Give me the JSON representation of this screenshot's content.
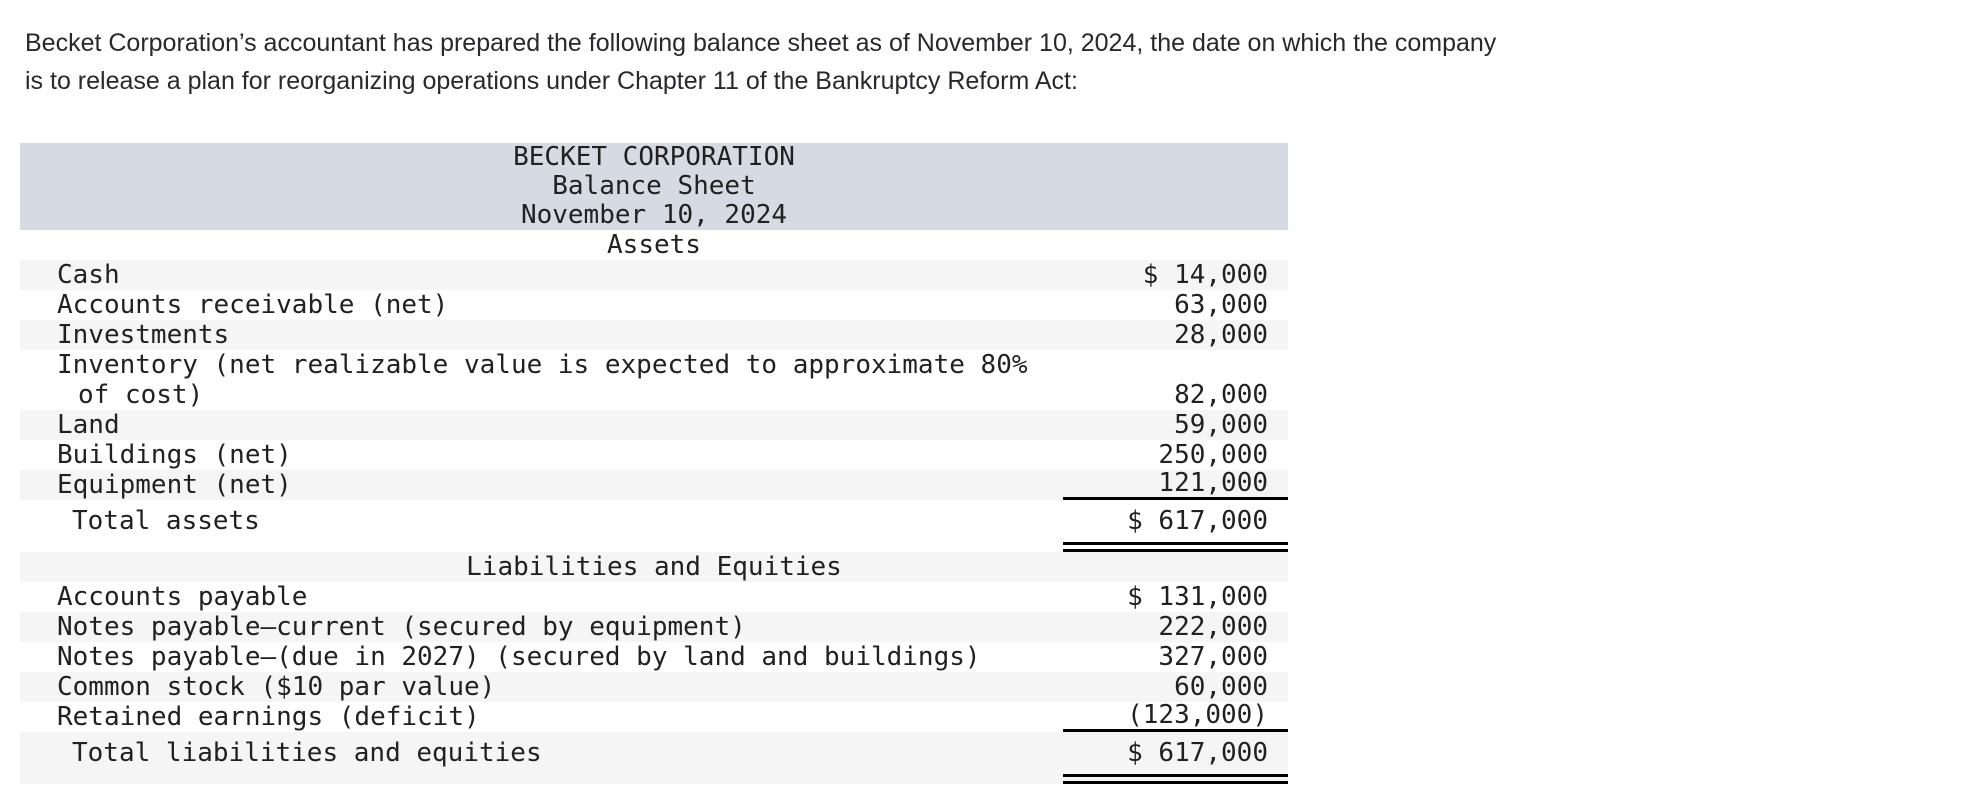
{
  "intro": {
    "lines": [
      "Becket Corporation’s accountant has prepared the following balance sheet as of November 10, 2024, the date on which the company",
      "is to release a plan for reorganizing operations under Chapter 11 of the Bankruptcy Reform Act:"
    ]
  },
  "colors": {
    "header_bg": "#d6dae2",
    "stripe_bg": "#f5f5f6",
    "text": "#212121",
    "rule": "#000000"
  },
  "sheet": {
    "header": [
      "BECKET CORPORATION",
      "Balance Sheet",
      "November 10, 2024"
    ],
    "rows": [
      {
        "id": "assets-section",
        "type": "section",
        "bg": "white",
        "label": "Assets"
      },
      {
        "id": "cash",
        "type": "item",
        "bg": "stripe",
        "label": "Cash",
        "amount": "$ 14,000"
      },
      {
        "id": "accounts-receivable",
        "type": "item",
        "bg": "white",
        "label": "Accounts receivable (net)",
        "amount": "63,000"
      },
      {
        "id": "investments",
        "type": "item",
        "bg": "stripe",
        "label": "Investments",
        "amount": "28,000"
      },
      {
        "id": "inventory",
        "type": "item2",
        "bg": "white",
        "label_lines": [
          "Inventory (net realizable value is expected to approximate 80%",
          "of cost)"
        ],
        "amount": "82,000"
      },
      {
        "id": "land",
        "type": "item",
        "bg": "stripe",
        "label": "Land",
        "amount": "59,000"
      },
      {
        "id": "buildings",
        "type": "item",
        "bg": "white",
        "label": "Buildings (net)",
        "amount": "250,000"
      },
      {
        "id": "equipment",
        "type": "item",
        "bg": "stripe",
        "rule": "single",
        "label": "Equipment (net)",
        "amount": "121,000"
      },
      {
        "id": "total-assets",
        "type": "total",
        "bg": "white",
        "rule": "double",
        "label": "Total assets",
        "amount": "$ 617,000"
      },
      {
        "id": "liabilities-section",
        "type": "section",
        "bg": "stripe",
        "label": "Liabilities and Equities"
      },
      {
        "id": "accounts-payable",
        "type": "item",
        "bg": "white",
        "label": "Accounts payable",
        "amount": "$ 131,000"
      },
      {
        "id": "notes-payable-current",
        "type": "item",
        "bg": "stripe",
        "label": "Notes payable—current (secured by equipment)",
        "amount": "222,000"
      },
      {
        "id": "notes-payable-2027",
        "type": "item",
        "bg": "white",
        "label": "Notes payable—(due in 2027) (secured by land and buildings)",
        "amount": "327,000"
      },
      {
        "id": "common-stock",
        "type": "item",
        "bg": "stripe",
        "label": "Common stock ($10 par value)",
        "amount": "60,000"
      },
      {
        "id": "retained-earnings",
        "type": "item",
        "bg": "white",
        "rule": "single",
        "label": "Retained earnings (deficit)",
        "amount": "(123,000)"
      },
      {
        "id": "total-liabilities-equities",
        "type": "total",
        "bg": "stripe",
        "rule": "double",
        "label": "Total liabilities and equities",
        "amount": "$ 617,000"
      }
    ]
  }
}
